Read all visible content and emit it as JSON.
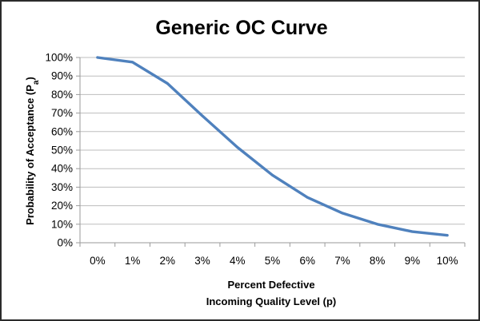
{
  "chart_data": {
    "type": "line",
    "title": "Generic OC Curve",
    "xlabel": [
      "Percent Defective",
      "Incoming Quality Level (p)"
    ],
    "ylabel": "Probability of Acceptance (P",
    "ylabel_subscript": "a",
    "ylabel_suffix": ")",
    "categories": [
      "0%",
      "1%",
      "2%",
      "3%",
      "4%",
      "5%",
      "6%",
      "7%",
      "8%",
      "9%",
      "10%"
    ],
    "y_tick_labels": [
      "0%",
      "10%",
      "20%",
      "30%",
      "40%",
      "50%",
      "60%",
      "70%",
      "80%",
      "90%",
      "100%"
    ],
    "ylim": [
      0,
      1
    ],
    "grid": true,
    "series": [
      {
        "color": "#4f81bd",
        "values": [
          1.0,
          0.975,
          0.86,
          0.685,
          0.515,
          0.365,
          0.245,
          0.16,
          0.1,
          0.06,
          0.04
        ]
      }
    ]
  }
}
